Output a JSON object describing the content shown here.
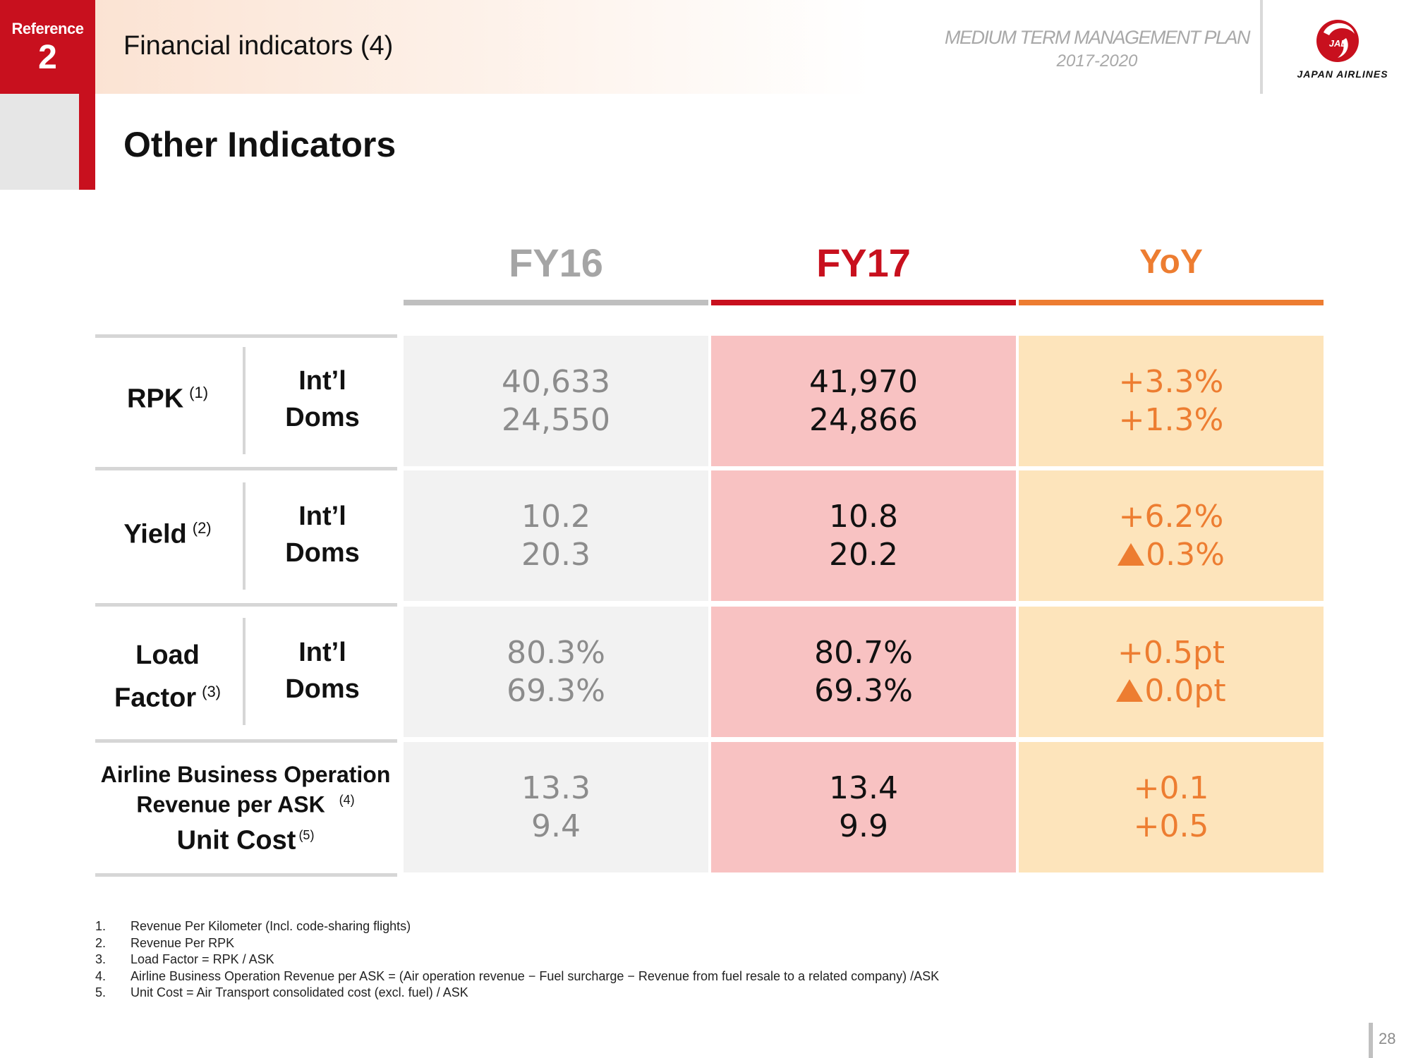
{
  "header": {
    "reference_label": "Reference",
    "reference_number": "2",
    "title": "Financial indicators (4)",
    "plan_title": "MEDIUM TERM MANAGEMENT PLAN",
    "plan_years": "2017-2020",
    "logo_text": "JAPAN AIRLINES",
    "logo_mark_text": "JAL"
  },
  "section_title": "Other Indicators",
  "columns": {
    "fy16": "FY16",
    "fy17": "FY17",
    "yoy": "YoY"
  },
  "rows": [
    {
      "label": "RPK",
      "note": "(1)",
      "sub_labels": [
        "Int’l",
        "Doms"
      ],
      "fy16": [
        "40,633",
        "24,550"
      ],
      "fy17": [
        "41,970",
        "24,866"
      ],
      "yoy": [
        "+3.3%",
        "+1.3%"
      ]
    },
    {
      "label": "Yield",
      "note": "(2)",
      "sub_labels": [
        "Int’l",
        "Doms"
      ],
      "fy16": [
        "10.2",
        "20.3"
      ],
      "fy17": [
        "10.8",
        "20.2"
      ],
      "yoy": [
        "+6.2%",
        "0.3%"
      ]
    },
    {
      "label_line1": "Load",
      "label_line2": "Factor",
      "note": "(3)",
      "sub_labels": [
        "Int’l",
        "Doms"
      ],
      "fy16": [
        "80.3%",
        "69.3%"
      ],
      "fy17": [
        "80.7%",
        "69.3%"
      ],
      "yoy": [
        "+0.5pt",
        "0.0pt"
      ]
    },
    {
      "label_line1": "Airline Business Operation",
      "label_line2": "Revenue per ASK",
      "note1": "(4)",
      "label_line3": "Unit Cost",
      "note2": "(5)",
      "fy16": [
        "13.3",
        "9.4"
      ],
      "fy17": [
        "13.4",
        "9.9"
      ],
      "yoy": [
        "+0.1",
        "+0.5"
      ]
    }
  ],
  "footnotes": [
    {
      "num": "1.",
      "text": "Revenue Per Kilometer (Incl. code-sharing flights)"
    },
    {
      "num": "2.",
      "text": "Revenue Per RPK"
    },
    {
      "num": "3.",
      "text": "Load Factor = RPK / ASK"
    },
    {
      "num": "4.",
      "text": "Airline Business Operation Revenue per ASK = (Air operation revenue − Fuel surcharge − Revenue from fuel resale to a related company) /ASK"
    },
    {
      "num": "5.",
      "text": "Unit Cost = Air Transport consolidated cost (excl. fuel) / ASK"
    }
  ],
  "page_number": "28",
  "colors": {
    "jal_red": "#c8101e",
    "yoy_orange": "#ed7d31",
    "fy16_grey": "#a5a5a5",
    "fy17_cell": "#f8c2c2",
    "yoy_cell": "#fde4bb",
    "fy16_cell": "#f2f2f2"
  },
  "icons": {
    "decrease_marker": "up-triangle-icon",
    "logo": "jal-crane-icon"
  }
}
